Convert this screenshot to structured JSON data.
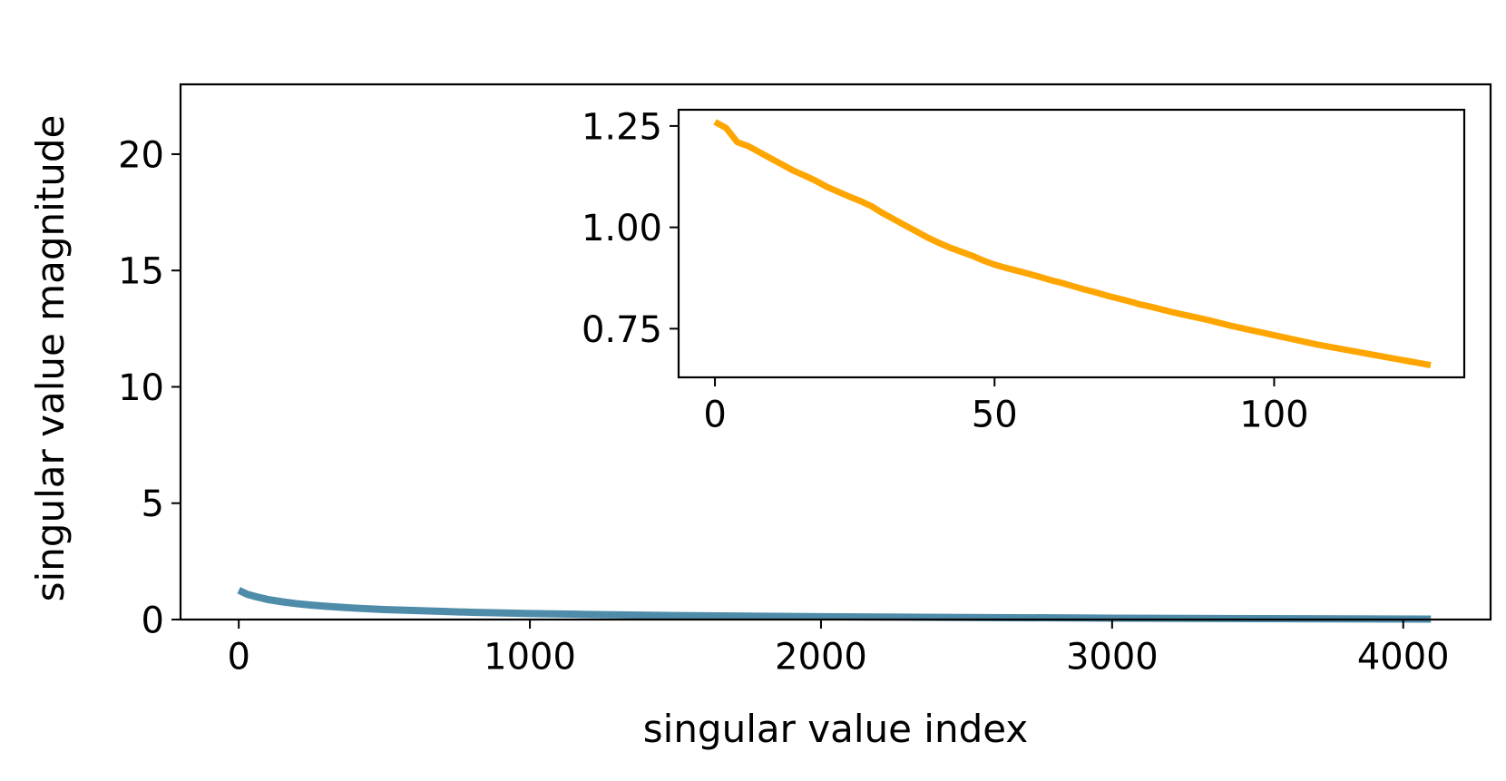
{
  "chart_data": [
    {
      "id": "main",
      "type": "line",
      "xlabel": "singular value index",
      "ylabel": "singular value magnitude",
      "xlim": [
        -200,
        4300
      ],
      "ylim": [
        0,
        23
      ],
      "xticks": [
        0,
        1000,
        2000,
        3000,
        4000
      ],
      "xtick_labels": [
        "0",
        "1000",
        "2000",
        "3000",
        "4000"
      ],
      "yticks": [
        0,
        5,
        10,
        15,
        20
      ],
      "ytick_labels": [
        "0",
        "5",
        "10",
        "15",
        "20"
      ],
      "grid": false,
      "series": [
        {
          "color": "#4e8ca9",
          "x": [
            0,
            30,
            60,
            100,
            150,
            200,
            250,
            300,
            400,
            500,
            600,
            700,
            800,
            1000,
            1200,
            1500,
            2000,
            2500,
            3000,
            3500,
            4095
          ],
          "y": [
            1.26,
            1.08,
            0.98,
            0.86,
            0.76,
            0.68,
            0.62,
            0.57,
            0.49,
            0.43,
            0.39,
            0.35,
            0.31,
            0.26,
            0.22,
            0.17,
            0.12,
            0.09,
            0.06,
            0.04,
            0.02
          ]
        }
      ]
    },
    {
      "id": "inset",
      "type": "line",
      "xlim": [
        -6.5,
        134
      ],
      "ylim": [
        0.63,
        1.29
      ],
      "xticks": [
        0,
        50,
        100
      ],
      "xtick_labels": [
        "0",
        "50",
        "100"
      ],
      "yticks": [
        0.75,
        1.0,
        1.25
      ],
      "ytick_labels": [
        "0.75",
        "1.00",
        "1.25"
      ],
      "grid": false,
      "series": [
        {
          "color": "#ffa500",
          "x": [
            0,
            2,
            4,
            6,
            8,
            10,
            12,
            14,
            16,
            18,
            20,
            22,
            24,
            26,
            28,
            30,
            32,
            34,
            36,
            38,
            40,
            42,
            44,
            46,
            48,
            50,
            52,
            54,
            56,
            58,
            60,
            62,
            64,
            66,
            68,
            70,
            72,
            74,
            76,
            78,
            80,
            82,
            84,
            86,
            88,
            90,
            92,
            94,
            96,
            98,
            100,
            102,
            104,
            106,
            108,
            110,
            112,
            114,
            116,
            118,
            120,
            122,
            124,
            126,
            128
          ],
          "y": [
            1.26,
            1.245,
            1.21,
            1.2,
            1.185,
            1.17,
            1.155,
            1.14,
            1.128,
            1.115,
            1.1,
            1.088,
            1.076,
            1.065,
            1.052,
            1.035,
            1.02,
            1.005,
            0.99,
            0.975,
            0.962,
            0.95,
            0.94,
            0.93,
            0.918,
            0.908,
            0.9,
            0.893,
            0.886,
            0.878,
            0.87,
            0.863,
            0.855,
            0.847,
            0.84,
            0.832,
            0.825,
            0.818,
            0.81,
            0.804,
            0.797,
            0.79,
            0.784,
            0.778,
            0.772,
            0.765,
            0.758,
            0.752,
            0.746,
            0.74,
            0.734,
            0.728,
            0.722,
            0.716,
            0.71,
            0.705,
            0.7,
            0.695,
            0.69,
            0.685,
            0.68,
            0.675,
            0.67,
            0.665,
            0.66
          ]
        }
      ]
    }
  ]
}
